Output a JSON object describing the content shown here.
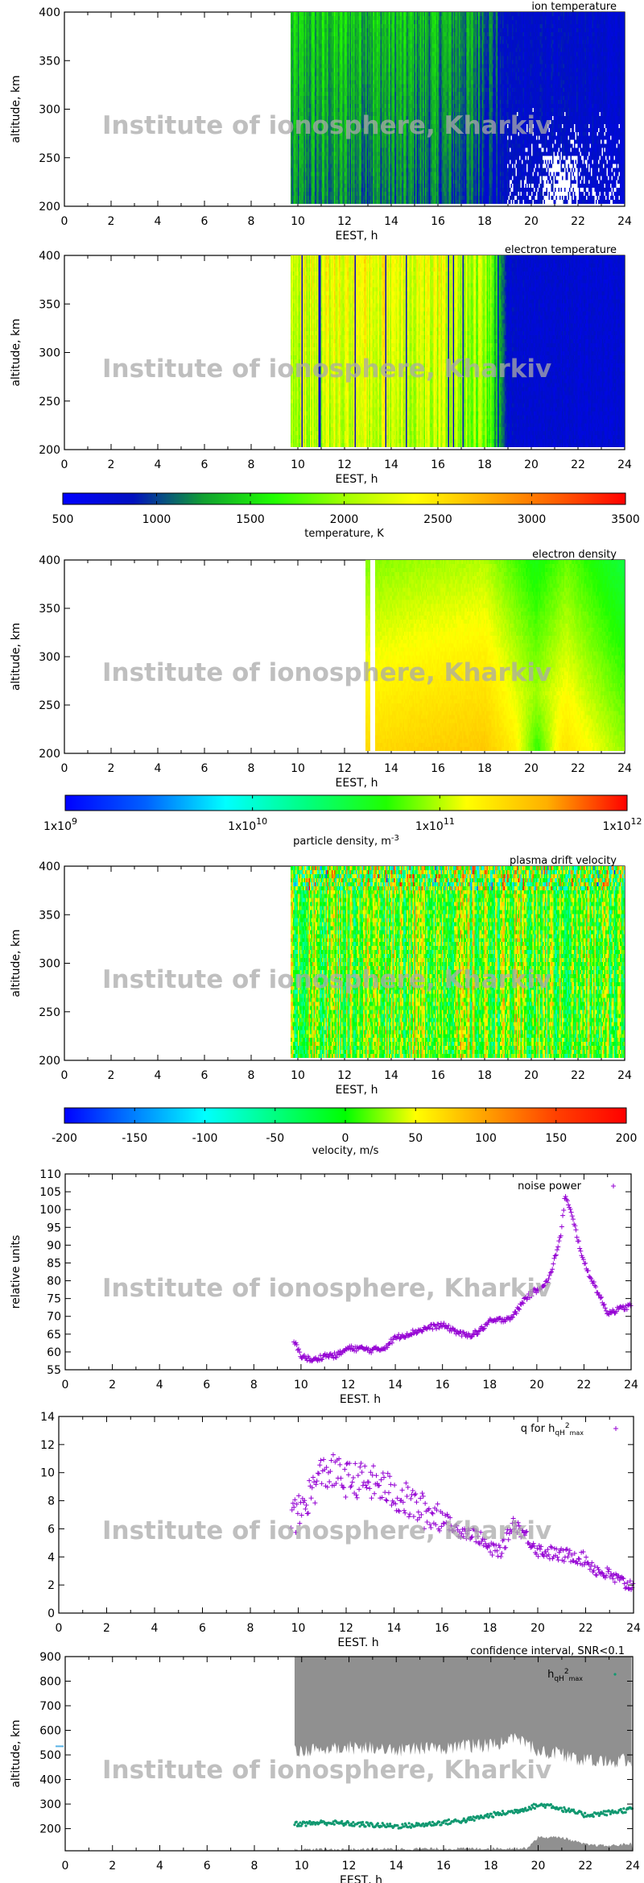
{
  "watermark": "Institute of ionosphere, Kharkiv",
  "chart_data": [
    {
      "type": "heatmap",
      "title": "ion temperature",
      "xlabel": "EEST, h",
      "ylabel": "altitude, km",
      "xlim": [
        0,
        24
      ],
      "ylim": [
        200,
        400
      ],
      "xticks": [
        0,
        2,
        4,
        6,
        8,
        10,
        12,
        14,
        16,
        18,
        20,
        22,
        24
      ],
      "yticks": [
        200,
        250,
        300,
        350,
        400
      ],
      "data_x_range": [
        9.7,
        24
      ],
      "colorbar": "temperature",
      "profile": [
        [
          9.7,
          1250
        ],
        [
          12,
          1300
        ],
        [
          14,
          1250
        ],
        [
          16,
          1200
        ],
        [
          18,
          1100
        ],
        [
          18.8,
          850
        ],
        [
          24,
          780
        ]
      ]
    },
    {
      "type": "heatmap",
      "title": "electron temperature",
      "xlabel": "EEST, h",
      "ylabel": "altitude, km",
      "xlim": [
        0,
        24
      ],
      "ylim": [
        200,
        400
      ],
      "xticks": [
        0,
        2,
        4,
        6,
        8,
        10,
        12,
        14,
        16,
        18,
        20,
        22,
        24
      ],
      "yticks": [
        200,
        250,
        300,
        350,
        400
      ],
      "data_x_range": [
        9.7,
        24
      ],
      "colorbar": "temperature",
      "profile": [
        [
          9.7,
          2100
        ],
        [
          12,
          2250
        ],
        [
          14,
          2250
        ],
        [
          16,
          2150
        ],
        [
          18,
          1950
        ],
        [
          18.6,
          1400
        ],
        [
          19,
          800
        ],
        [
          24,
          750
        ]
      ]
    },
    {
      "type": "colorbar",
      "name": "temperature",
      "label": "temperature, K",
      "range": [
        500,
        3500
      ],
      "ticks": [
        "500",
        "1000",
        "1500",
        "2000",
        "2500",
        "3000",
        "3500"
      ],
      "colors": [
        "#0000ff",
        "#0010c0",
        "#10a030",
        "#20ff00",
        "#a0ff00",
        "#ffff00",
        "#ffb000",
        "#ff6000",
        "#ff0000"
      ]
    },
    {
      "type": "heatmap",
      "title": "electron density",
      "xlabel": "EEST, h",
      "ylabel": "altitude, km",
      "xlim": [
        0,
        24
      ],
      "ylim": [
        200,
        400
      ],
      "xticks": [
        0,
        2,
        4,
        6,
        8,
        10,
        12,
        14,
        16,
        18,
        20,
        22,
        24
      ],
      "yticks": [
        200,
        250,
        300,
        350,
        400
      ],
      "data_x_range": [
        12.9,
        24
      ],
      "gap_x_range": [
        13.1,
        13.3
      ],
      "colorbar": "density",
      "log10_profile": [
        [
          12.9,
          11.25
        ],
        [
          15,
          11.3
        ],
        [
          18,
          11.35
        ],
        [
          20.2,
          11.0
        ],
        [
          21.5,
          11.2
        ],
        [
          24,
          10.85
        ]
      ]
    },
    {
      "type": "colorbar",
      "name": "density",
      "label": "particle density, m",
      "label_sup": "-3",
      "scale": "log",
      "range": [
        1000000000.0,
        1000000000000.0
      ],
      "ticks": [
        {
          "base": "1x10",
          "exp": "9"
        },
        {
          "base": "1x10",
          "exp": "10"
        },
        {
          "base": "1x10",
          "exp": "11"
        },
        {
          "base": "1x10",
          "exp": "12"
        }
      ],
      "colors": [
        "#0000ff",
        "#0060ff",
        "#00ffff",
        "#00ff80",
        "#20ff00",
        "#ffff00",
        "#ffb000",
        "#ff0000"
      ]
    },
    {
      "type": "heatmap",
      "title": "plasma drift velocity",
      "xlabel": "EEST, h",
      "ylabel": "altitude, km",
      "xlim": [
        0,
        24
      ],
      "ylim": [
        200,
        400
      ],
      "xticks": [
        0,
        2,
        4,
        6,
        8,
        10,
        12,
        14,
        16,
        18,
        20,
        22,
        24
      ],
      "yticks": [
        200,
        250,
        300,
        350,
        400
      ],
      "data_x_range": [
        9.7,
        24
      ],
      "colorbar": "velocity",
      "profile": [
        [
          9.7,
          10
        ],
        [
          15,
          20
        ],
        [
          24,
          0
        ]
      ]
    },
    {
      "type": "colorbar",
      "name": "velocity",
      "label": "velocity, m/s",
      "range": [
        -200,
        200
      ],
      "ticks": [
        "-200",
        "-150",
        "-100",
        "-50",
        "0",
        "50",
        "100",
        "150",
        "200"
      ],
      "colors": [
        "#0000ff",
        "#0080ff",
        "#00ffff",
        "#00ff80",
        "#00ff00",
        "#ffff00",
        "#ffa000",
        "#ff4000",
        "#ff0000"
      ]
    },
    {
      "type": "scatter",
      "title": "",
      "xlabel": "EEST. h",
      "ylabel": "relative units",
      "xlim": [
        0,
        24
      ],
      "ylim": [
        55,
        110
      ],
      "xticks": [
        0,
        2,
        4,
        6,
        8,
        10,
        12,
        14,
        16,
        18,
        20,
        22,
        24
      ],
      "yticks": [
        55,
        60,
        65,
        70,
        75,
        80,
        85,
        90,
        95,
        100,
        105,
        110
      ],
      "legend": "top-right",
      "color": "#9400d3",
      "series": [
        {
          "name": "noise power",
          "marker": "+",
          "x": [
            9.7,
            10,
            10.5,
            11,
            11.5,
            12,
            12.5,
            13,
            13.5,
            14,
            14.5,
            15,
            15.5,
            16,
            16.5,
            17,
            17.5,
            18,
            18.5,
            19,
            19.5,
            20,
            20.5,
            21,
            21.2,
            21.5,
            22,
            22.5,
            23,
            23.5,
            24
          ],
          "y": [
            63,
            59,
            57.5,
            59,
            59,
            61,
            61,
            60.5,
            61,
            64,
            65,
            66,
            67,
            67.5,
            66,
            64.5,
            65.5,
            68.5,
            69,
            70,
            75,
            77.5,
            80,
            92,
            104,
            98,
            85,
            78,
            71,
            72,
            73
          ]
        }
      ]
    },
    {
      "type": "scatter",
      "title": "",
      "xlabel": "EEST. h",
      "ylabel": "",
      "xlim": [
        0,
        24
      ],
      "ylim": [
        0,
        14
      ],
      "xticks": [
        0,
        2,
        4,
        6,
        8,
        10,
        12,
        14,
        16,
        18,
        20,
        22,
        24
      ],
      "yticks": [
        0,
        2,
        4,
        6,
        8,
        10,
        12,
        14
      ],
      "legend": "top-right",
      "color": "#9400d3",
      "series": [
        {
          "name": "q for h",
          "name_sub": "qH",
          "name_sup": "2",
          "name_sub2": "max",
          "marker": "+",
          "x": [
            9.7,
            10,
            10.5,
            11,
            11.5,
            12,
            12.5,
            13,
            13.5,
            14,
            14.5,
            15,
            15.5,
            16,
            16.5,
            17,
            17.5,
            18,
            18.5,
            19,
            19.5,
            20,
            20.5,
            21,
            21.5,
            22,
            22.5,
            23,
            23.5,
            24
          ],
          "y": [
            7,
            7,
            8.5,
            10,
            10,
            9.5,
            9.5,
            9.3,
            9,
            8.5,
            8,
            7.5,
            7,
            7,
            6,
            5.8,
            5.5,
            4.5,
            4.5,
            6.5,
            5.5,
            4.5,
            4.3,
            4.1,
            4.1,
            3.8,
            3,
            2.7,
            2.2,
            1.9
          ]
        }
      ]
    },
    {
      "type": "scatter",
      "title": "confidence interval, SNR<0.1",
      "xlabel": "EEST, h",
      "ylabel": "altitude, km",
      "xlim": [
        0,
        24
      ],
      "ylim": [
        110,
        900
      ],
      "xticks": [
        0,
        2,
        4,
        6,
        8,
        10,
        12,
        14,
        16,
        18,
        20,
        22,
        24
      ],
      "yticks": [
        200,
        300,
        400,
        500,
        600,
        700,
        800,
        900
      ],
      "legend": "top-right",
      "band_color": "#909090",
      "upper_band": {
        "x": [
          9.7,
          12,
          14,
          16,
          18,
          19,
          20,
          21,
          22,
          23,
          24
        ],
        "lower": [
          520,
          530,
          520,
          530,
          540,
          560,
          520,
          500,
          480,
          470,
          480
        ],
        "upper": 900
      },
      "lower_band": {
        "x": [
          9.7,
          19.5,
          20,
          21,
          22,
          23,
          24
        ],
        "upper": [
          115,
          120,
          165,
          165,
          135,
          130,
          140
        ],
        "lower": 110
      },
      "color": "#109870",
      "series": [
        {
          "name": "h",
          "name_sub": "qH",
          "name_sup": "2",
          "name_sub2": "max",
          "marker": "dot",
          "x": [
            9.7,
            10,
            11,
            12,
            13,
            14,
            15,
            16,
            17,
            18,
            19,
            20,
            20.5,
            21,
            22,
            23,
            24
          ],
          "y": [
            220,
            220,
            225,
            220,
            215,
            210,
            215,
            225,
            235,
            255,
            270,
            295,
            295,
            280,
            255,
            265,
            280
          ]
        }
      ]
    }
  ]
}
